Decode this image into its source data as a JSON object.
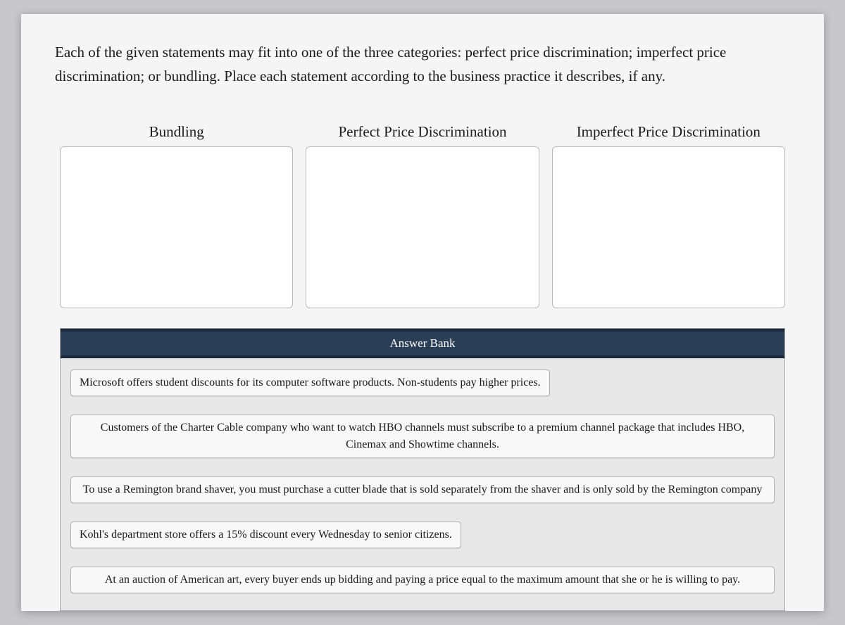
{
  "instructions": "Each of the given statements may fit into one of the three categories: perfect price discrimination; imperfect price discrimination; or bundling. Place each statement according to the business practice it describes, if any.",
  "categories": [
    {
      "label": "Bundling"
    },
    {
      "label": "Perfect Price Discrimination"
    },
    {
      "label": "Imperfect Price Discrimination"
    }
  ],
  "answerBank": {
    "title": "Answer Bank",
    "items": [
      {
        "text": "Microsoft offers student discounts for its computer software products. Non-students pay higher prices.",
        "align": "left",
        "wide": false
      },
      {
        "text": "Customers of the Charter Cable company who want to watch HBO channels must subscribe to a premium channel package that includes HBO, Cinemax and Showtime channels.",
        "align": "center",
        "wide": true
      },
      {
        "text": "To use a Remington brand shaver, you must purchase a cutter blade that is sold separately from the shaver and is only sold by the Remington company",
        "align": "left",
        "wide": true
      },
      {
        "text": "Kohl's department store offers a 15% discount every Wednesday to senior citizens.",
        "align": "left",
        "wide": false
      },
      {
        "text": "At an auction of American art, every buyer ends up bidding and paying a price equal to the maximum amount that she or he is willing to pay.",
        "align": "left",
        "wide": true
      }
    ]
  },
  "colors": {
    "page_bg": "#f5f5f5",
    "body_bg": "#c8c8cc",
    "header_bg": "#2a3e55",
    "header_border": "#1a2838",
    "bank_bg": "#e8e8e8",
    "item_bg": "#f8f8f8",
    "border": "#b8b8b8"
  }
}
